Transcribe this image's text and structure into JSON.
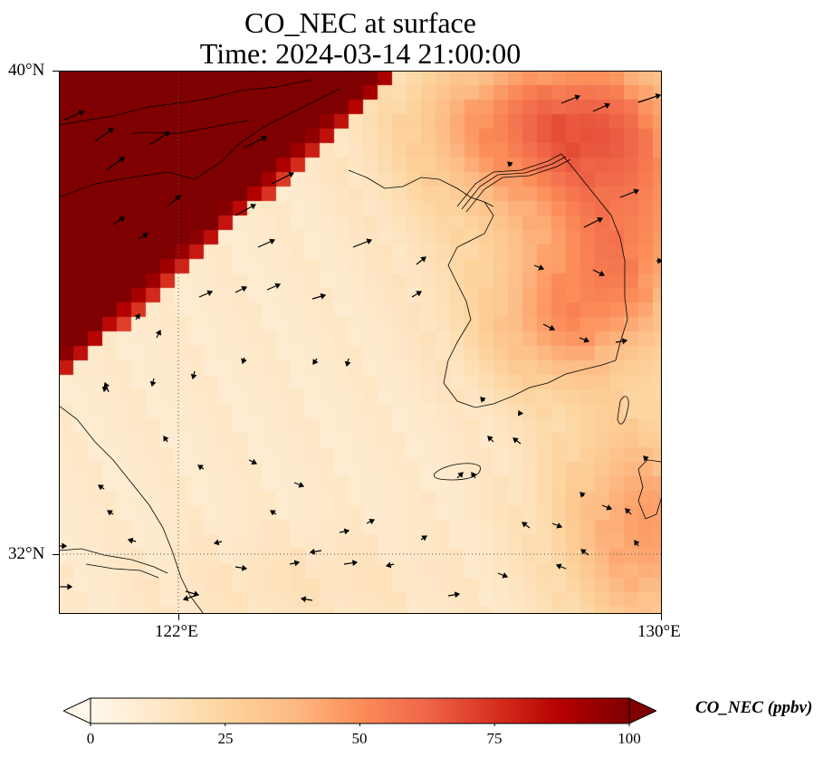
{
  "title": {
    "line1": "CO_NEC at surface",
    "line2": "Time: 2024-03-14 21:00:00"
  },
  "axes": {
    "lat_labels": [
      "40°N",
      "32°N"
    ],
    "lon_labels": [
      "122°E",
      "130°E"
    ],
    "lat_range": [
      31.2,
      40.0
    ],
    "lon_range": [
      120.0,
      130.0
    ],
    "gridlines": {
      "lats": [
        32
      ],
      "lons": [
        122
      ],
      "style": "dotted"
    }
  },
  "colorbar": {
    "title": "CO_NEC (ppbv)",
    "ticks": [
      "0",
      "25",
      "50",
      "75",
      "100"
    ],
    "range": [
      0,
      100
    ],
    "extend": "both",
    "colormap": "OrRd",
    "stops": [
      "#fff7ec",
      "#fee8c8",
      "#fdd49e",
      "#fdbb84",
      "#fc8d59",
      "#ef6548",
      "#d7301f",
      "#b30000",
      "#7f0000"
    ]
  },
  "field": {
    "variable": "CO_NEC",
    "units": "ppbv",
    "level": "surface",
    "features": [
      "saturated plume over the northwest (Shandong / Liaodong region) exceeding 100 ppbv",
      "moderate 30-55 ppbv over the Korean peninsula and northeast",
      "background 5-20 ppbv over the Yellow Sea and East China Sea"
    ]
  },
  "wind_vectors": {
    "style": "black arrows",
    "present": true
  }
}
